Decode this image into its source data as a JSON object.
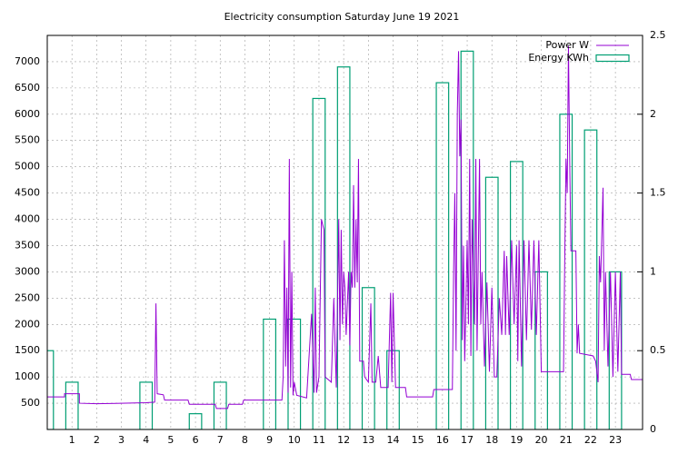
{
  "chart_data": {
    "type": "line",
    "title": "Electricity consumption Saturday June 19 2021",
    "xlim": [
      0,
      24.1
    ],
    "xticks": [
      1,
      2,
      3,
      4,
      5,
      6,
      7,
      8,
      9,
      10,
      11,
      12,
      13,
      14,
      15,
      16,
      17,
      18,
      19,
      20,
      21,
      22,
      23
    ],
    "ylim": [
      0,
      7500
    ],
    "yticks": [
      500,
      1000,
      1500,
      2000,
      2500,
      3000,
      3500,
      4000,
      4500,
      5000,
      5500,
      6000,
      6500,
      7000
    ],
    "y2lim": [
      0,
      2.5
    ],
    "y2ticks": [
      0,
      0.5,
      1,
      1.5,
      2,
      2.5
    ],
    "grid": true,
    "legend": "top-right",
    "series": [
      {
        "name": "Power W",
        "color": "#9400d3",
        "type": "line",
        "x": [
          0,
          0.7,
          0.7,
          1.3,
          1.3,
          2,
          3,
          4,
          4.35,
          4.4,
          4.45,
          4.7,
          4.75,
          5.7,
          5.75,
          6.8,
          6.85,
          7.3,
          7.35,
          7.9,
          7.95,
          9.5,
          9.55,
          9.6,
          9.65,
          9.7,
          9.75,
          9.8,
          9.85,
          9.9,
          9.95,
          10,
          10.1,
          10.5,
          10.7,
          10.8,
          10.85,
          10.9,
          11,
          11.1,
          11.2,
          11.25,
          11.5,
          11.6,
          11.7,
          11.8,
          11.85,
          11.9,
          11.95,
          12,
          12.05,
          12.1,
          12.2,
          12.25,
          12.3,
          12.35,
          12.4,
          12.45,
          12.5,
          12.55,
          12.6,
          12.65,
          12.8,
          12.85,
          13,
          13.1,
          13.15,
          13.3,
          13.4,
          13.5,
          13.8,
          13.9,
          13.95,
          14,
          14.1,
          14.5,
          14.55,
          15.6,
          15.65,
          16.4,
          16.45,
          16.5,
          16.55,
          16.6,
          16.65,
          16.7,
          16.75,
          16.8,
          16.85,
          16.9,
          17,
          17.05,
          17.1,
          17.15,
          17.2,
          17.3,
          17.35,
          17.4,
          17.5,
          17.55,
          17.6,
          17.7,
          17.8,
          17.9,
          18,
          18.1,
          18.2,
          18.3,
          18.4,
          18.5,
          18.55,
          18.6,
          18.7,
          18.8,
          18.9,
          19,
          19.05,
          19.1,
          19.2,
          19.3,
          19.4,
          19.5,
          19.6,
          19.7,
          19.8,
          19.9,
          20,
          20.9,
          20.95,
          21,
          21.05,
          21.1,
          21.15,
          21.2,
          21.4,
          21.45,
          21.5,
          21.55,
          22.1,
          22.2,
          22.3,
          22.35,
          22.4,
          22.5,
          22.55,
          22.6,
          22.7,
          22.8,
          22.9,
          23,
          23.1,
          23.2,
          23.25,
          23.6,
          23.65,
          24.1
        ],
        "values": [
          620,
          620,
          680,
          680,
          500,
          490,
          500,
          510,
          520,
          2400,
          680,
          660,
          560,
          560,
          480,
          480,
          400,
          400,
          480,
          480,
          560,
          560,
          1000,
          3600,
          1200,
          2700,
          700,
          5150,
          800,
          3000,
          650,
          900,
          650,
          600,
          2200,
          700,
          2700,
          700,
          1000,
          4000,
          3800,
          1000,
          900,
          2500,
          800,
          4000,
          1700,
          3800,
          2000,
          3000,
          2700,
          1800,
          3000,
          1600,
          3000,
          2700,
          4650,
          2700,
          4000,
          2800,
          5150,
          1300,
          1300,
          1000,
          900,
          2400,
          900,
          900,
          1400,
          800,
          800,
          2600,
          900,
          2600,
          800,
          800,
          620,
          620,
          760,
          760,
          3000,
          4500,
          1500,
          6000,
          7200,
          5200,
          5900,
          1700,
          3500,
          1300,
          3600,
          2000,
          5150,
          1400,
          4000,
          2000,
          5150,
          1500,
          5150,
          2000,
          3000,
          1200,
          2800,
          1100,
          2700,
          1000,
          1000,
          2500,
          1800,
          3400,
          1800,
          3300,
          1800,
          3600,
          2000,
          3500,
          1300,
          3600,
          1200,
          3600,
          1700,
          3600,
          1900,
          3600,
          1800,
          3600,
          1100,
          1100,
          3250,
          5150,
          4500,
          7300,
          5150,
          3400,
          3400,
          1450,
          2000,
          1450,
          1400,
          1300,
          900,
          3300,
          2800,
          4600,
          1500,
          3000,
          1200,
          3000,
          1000,
          3000,
          1100,
          3000,
          1050,
          1050,
          950,
          950
        ]
      },
      {
        "name": "Energy KWh",
        "color": "#009e73",
        "type": "bar",
        "axis": "y2",
        "x": [
          0,
          1,
          4,
          6,
          7,
          9,
          10,
          11,
          12,
          13,
          14,
          16,
          17,
          18,
          19,
          20,
          21,
          22,
          23
        ],
        "values": [
          0.5,
          0.3,
          0.3,
          0.1,
          0.3,
          0.7,
          0.7,
          2.1,
          2.3,
          0.9,
          0.5,
          2.2,
          2.4,
          1.6,
          1.7,
          1.0,
          2.0,
          1.9,
          1.0
        ]
      }
    ]
  }
}
